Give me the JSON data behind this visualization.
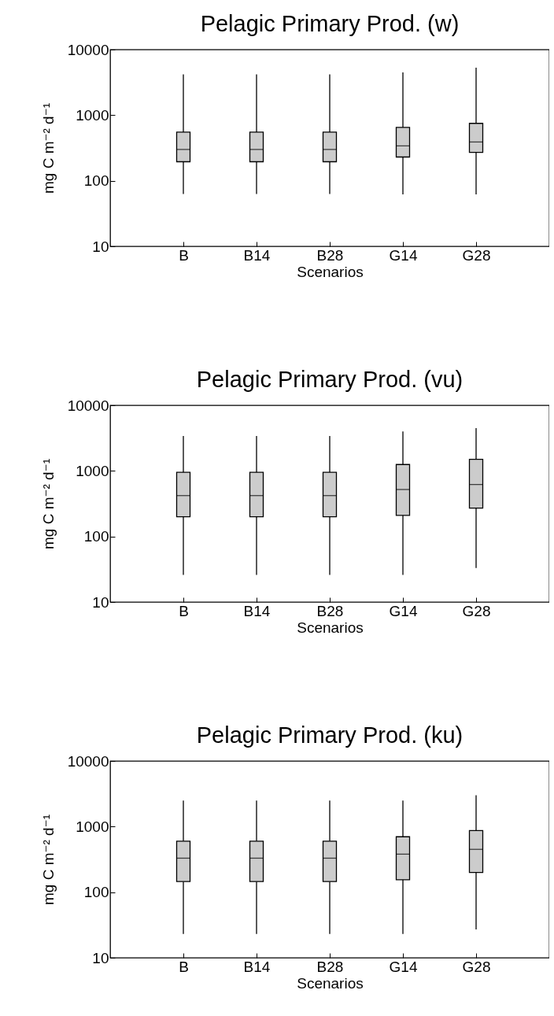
{
  "chart_data": [
    {
      "type": "box",
      "title": "Pelagic Primary Prod. (w)",
      "xlabel": "Scenarios",
      "ylabel": "mg C m⁻² d⁻¹",
      "categories": [
        "B",
        "B14",
        "B28",
        "G14",
        "G28"
      ],
      "log": true,
      "ylim": [
        10,
        10000
      ],
      "yticks": [
        10,
        100,
        1000,
        10000
      ],
      "series": [
        {
          "color": "#cccccc",
          "boxes": [
            {
              "low": 63,
              "q1": 195,
              "median": 300,
              "q3": 550,
              "high": 4200
            },
            {
              "low": 63,
              "q1": 195,
              "median": 300,
              "q3": 550,
              "high": 4200
            },
            {
              "low": 63,
              "q1": 195,
              "median": 300,
              "q3": 550,
              "high": 4200
            },
            {
              "low": 62,
              "q1": 230,
              "median": 340,
              "q3": 650,
              "high": 4500
            },
            {
              "low": 62,
              "q1": 270,
              "median": 390,
              "q3": 750,
              "high": 5300
            }
          ]
        }
      ]
    },
    {
      "type": "box",
      "title": "Pelagic Primary Prod. (vu)",
      "xlabel": "Scenarios",
      "ylabel": "mg C m⁻² d⁻¹",
      "categories": [
        "B",
        "B14",
        "B28",
        "G14",
        "G28"
      ],
      "log": true,
      "ylim": [
        10,
        10000
      ],
      "yticks": [
        10,
        100,
        1000,
        10000
      ],
      "series": [
        {
          "color": "#cccccc",
          "boxes": [
            {
              "low": 26,
              "q1": 200,
              "median": 420,
              "q3": 950,
              "high": 3400
            },
            {
              "low": 26,
              "q1": 200,
              "median": 420,
              "q3": 950,
              "high": 3400
            },
            {
              "low": 26,
              "q1": 200,
              "median": 420,
              "q3": 950,
              "high": 3400
            },
            {
              "low": 26,
              "q1": 210,
              "median": 520,
              "q3": 1250,
              "high": 4000
            },
            {
              "low": 33,
              "q1": 270,
              "median": 620,
              "q3": 1500,
              "high": 4500
            }
          ]
        }
      ]
    },
    {
      "type": "box",
      "title": "Pelagic Primary Prod. (ku)",
      "xlabel": "Scenarios",
      "ylabel": "mg C m⁻² d⁻¹",
      "categories": [
        "B",
        "B14",
        "B28",
        "G14",
        "G28"
      ],
      "log": true,
      "ylim": [
        10,
        10000
      ],
      "yticks": [
        10,
        100,
        1000,
        10000
      ],
      "series": [
        {
          "color": "#cccccc",
          "boxes": [
            {
              "low": 23,
              "q1": 145,
              "median": 330,
              "q3": 600,
              "high": 2500
            },
            {
              "low": 23,
              "q1": 145,
              "median": 330,
              "q3": 600,
              "high": 2500
            },
            {
              "low": 23,
              "q1": 145,
              "median": 330,
              "q3": 600,
              "high": 2500
            },
            {
              "low": 23,
              "q1": 155,
              "median": 380,
              "q3": 700,
              "high": 2500
            },
            {
              "low": 27,
              "q1": 200,
              "median": 450,
              "q3": 870,
              "high": 3000
            }
          ]
        }
      ]
    }
  ]
}
